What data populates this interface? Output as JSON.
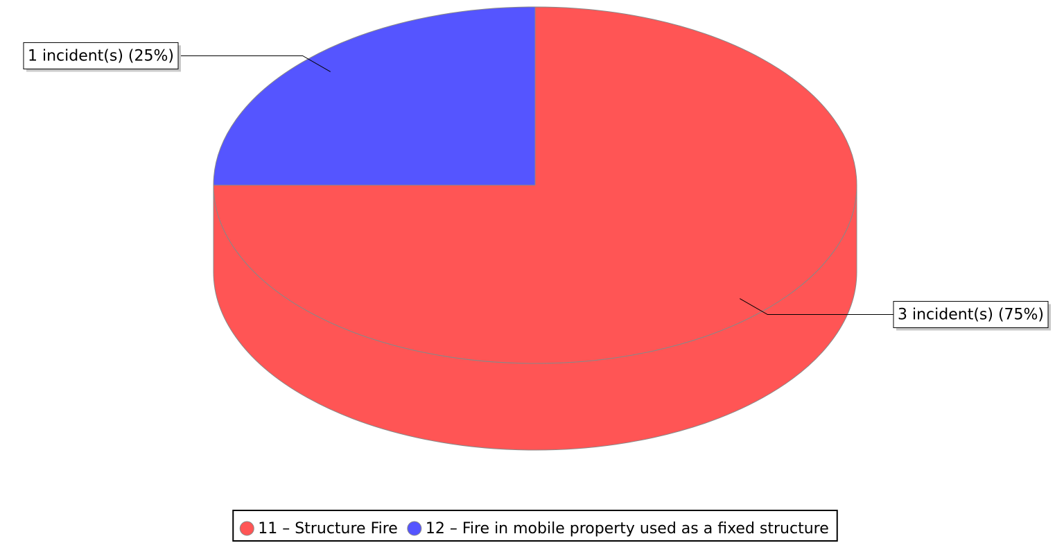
{
  "chart_data": {
    "type": "pie3d",
    "categories": [
      "11 – Structure Fire",
      "12 – Fire in mobile property used as a fixed structure"
    ],
    "values": [
      3,
      1
    ],
    "value_labels": [
      "3 incident(s) (75%)",
      "1 incident(s) (25%)"
    ],
    "colors": [
      "#ff5555",
      "#5555ff"
    ],
    "legend": "bottom"
  }
}
